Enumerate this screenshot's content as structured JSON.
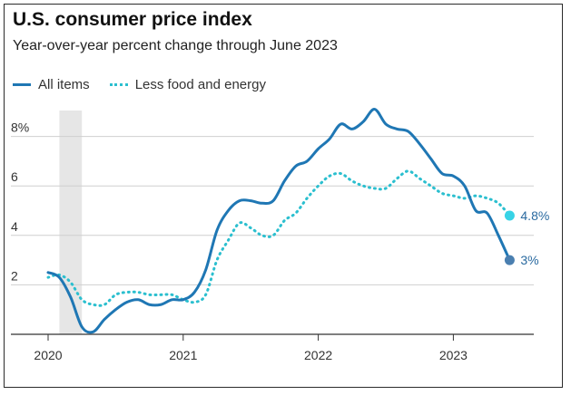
{
  "chart_data": {
    "type": "line",
    "title": "U.S. consumer price index",
    "subtitle": "Year-over-year percent change through June 2023",
    "x_range": [
      "2020-01",
      "2023-08"
    ],
    "ylim": [
      0,
      9.5
    ],
    "y_ticks": [
      2,
      4,
      6,
      8
    ],
    "y_tick_labels": [
      "2",
      "4",
      "6",
      "8%"
    ],
    "x_ticks": [
      "2020-01",
      "2021-01",
      "2022-01",
      "2023-01"
    ],
    "x_tick_labels": [
      "2020",
      "2021",
      "2022",
      "2023"
    ],
    "grid": true,
    "legend_position": "top-left",
    "recession_shading": [
      "2020-02",
      "2020-04"
    ],
    "series": [
      {
        "name": "All items",
        "style": "solid",
        "color": "#1f77b4",
        "x": [
          "2020-01",
          "2020-02",
          "2020-03",
          "2020-04",
          "2020-05",
          "2020-06",
          "2020-07",
          "2020-08",
          "2020-09",
          "2020-10",
          "2020-11",
          "2020-12",
          "2021-01",
          "2021-02",
          "2021-03",
          "2021-04",
          "2021-05",
          "2021-06",
          "2021-07",
          "2021-08",
          "2021-09",
          "2021-10",
          "2021-11",
          "2021-12",
          "2022-01",
          "2022-02",
          "2022-03",
          "2022-04",
          "2022-05",
          "2022-06",
          "2022-07",
          "2022-08",
          "2022-09",
          "2022-10",
          "2022-11",
          "2022-12",
          "2023-01",
          "2023-02",
          "2023-03",
          "2023-04",
          "2023-05",
          "2023-06"
        ],
        "values": [
          2.5,
          2.3,
          1.5,
          0.3,
          0.1,
          0.6,
          1.0,
          1.3,
          1.4,
          1.2,
          1.2,
          1.4,
          1.4,
          1.7,
          2.6,
          4.2,
          5.0,
          5.4,
          5.4,
          5.3,
          5.4,
          6.2,
          6.8,
          7.0,
          7.5,
          7.9,
          8.5,
          8.3,
          8.6,
          9.1,
          8.5,
          8.3,
          8.2,
          7.7,
          7.1,
          6.5,
          6.4,
          6.0,
          5.0,
          4.9,
          4.0,
          3.0
        ],
        "end_label": "3%"
      },
      {
        "name": "Less food and energy",
        "style": "dotted",
        "color": "#2bbfcf",
        "x": [
          "2020-01",
          "2020-02",
          "2020-03",
          "2020-04",
          "2020-05",
          "2020-06",
          "2020-07",
          "2020-08",
          "2020-09",
          "2020-10",
          "2020-11",
          "2020-12",
          "2021-01",
          "2021-02",
          "2021-03",
          "2021-04",
          "2021-05",
          "2021-06",
          "2021-07",
          "2021-08",
          "2021-09",
          "2021-10",
          "2021-11",
          "2021-12",
          "2022-01",
          "2022-02",
          "2022-03",
          "2022-04",
          "2022-05",
          "2022-06",
          "2022-07",
          "2022-08",
          "2022-09",
          "2022-10",
          "2022-11",
          "2022-12",
          "2023-01",
          "2023-02",
          "2023-03",
          "2023-04",
          "2023-05",
          "2023-06"
        ],
        "values": [
          2.3,
          2.4,
          2.1,
          1.4,
          1.2,
          1.2,
          1.6,
          1.7,
          1.7,
          1.6,
          1.6,
          1.6,
          1.4,
          1.3,
          1.6,
          3.0,
          3.8,
          4.5,
          4.3,
          4.0,
          4.0,
          4.6,
          4.9,
          5.5,
          6.0,
          6.4,
          6.5,
          6.2,
          6.0,
          5.9,
          5.9,
          6.3,
          6.6,
          6.3,
          6.0,
          5.7,
          5.6,
          5.5,
          5.6,
          5.5,
          5.3,
          4.8
        ],
        "end_label": "4.8%"
      }
    ]
  }
}
